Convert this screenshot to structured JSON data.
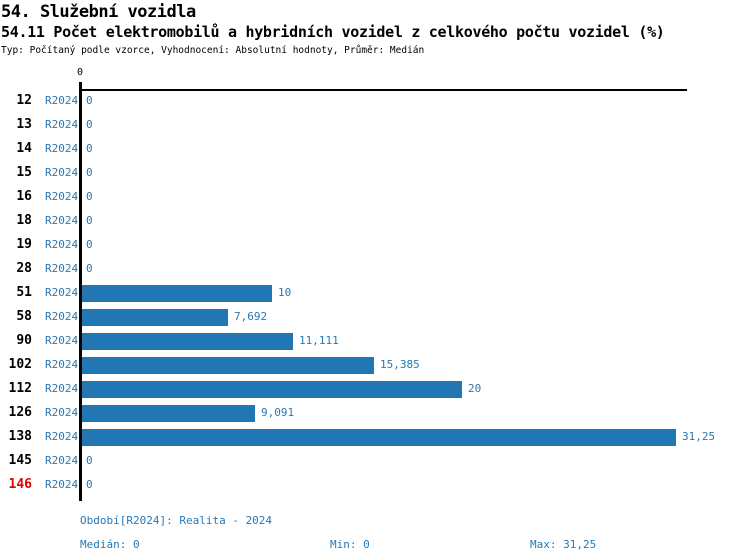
{
  "header": {
    "title1": "54. Služební vozidla",
    "title2": "54.11 Počet elektromobilů a hybridních vozidel z celkového počtu vozidel (%)",
    "subtitle": "Typ: Počítaný podle vzorce, Vyhodnocení: Absolutní hodnoty, Průměr: Medián"
  },
  "chart_data": {
    "type": "bar",
    "orientation": "horizontal",
    "series_name": "R2024",
    "categories": [
      "12",
      "13",
      "14",
      "15",
      "16",
      "18",
      "19",
      "28",
      "51",
      "58",
      "90",
      "102",
      "112",
      "126",
      "138",
      "145",
      "146"
    ],
    "values": [
      0,
      0,
      0,
      0,
      0,
      0,
      0,
      0,
      10,
      7.692,
      11.111,
      15.385,
      20,
      9.091,
      31.25,
      0,
      0
    ],
    "value_labels": [
      "0",
      "0",
      "0",
      "0",
      "0",
      "0",
      "0",
      "0",
      "10",
      "7,692",
      "11,111",
      "15,385",
      "20",
      "9,091",
      "31,25",
      "0",
      "0"
    ],
    "x_axis": {
      "tick_labels": [
        "0"
      ],
      "min": 0,
      "max": 31.25
    },
    "highlight_category": "146",
    "legend_position": "none",
    "grid": false,
    "colors": {
      "bar": "#2077b4",
      "blue_text": "#2878b4",
      "highlight_red": "#e60000",
      "axis": "#000000"
    }
  },
  "footer": {
    "period": "Období[R2024]: Realita - 2024",
    "median": "Medián: 0",
    "min": "Min: 0",
    "max": "Max: 31,25"
  }
}
